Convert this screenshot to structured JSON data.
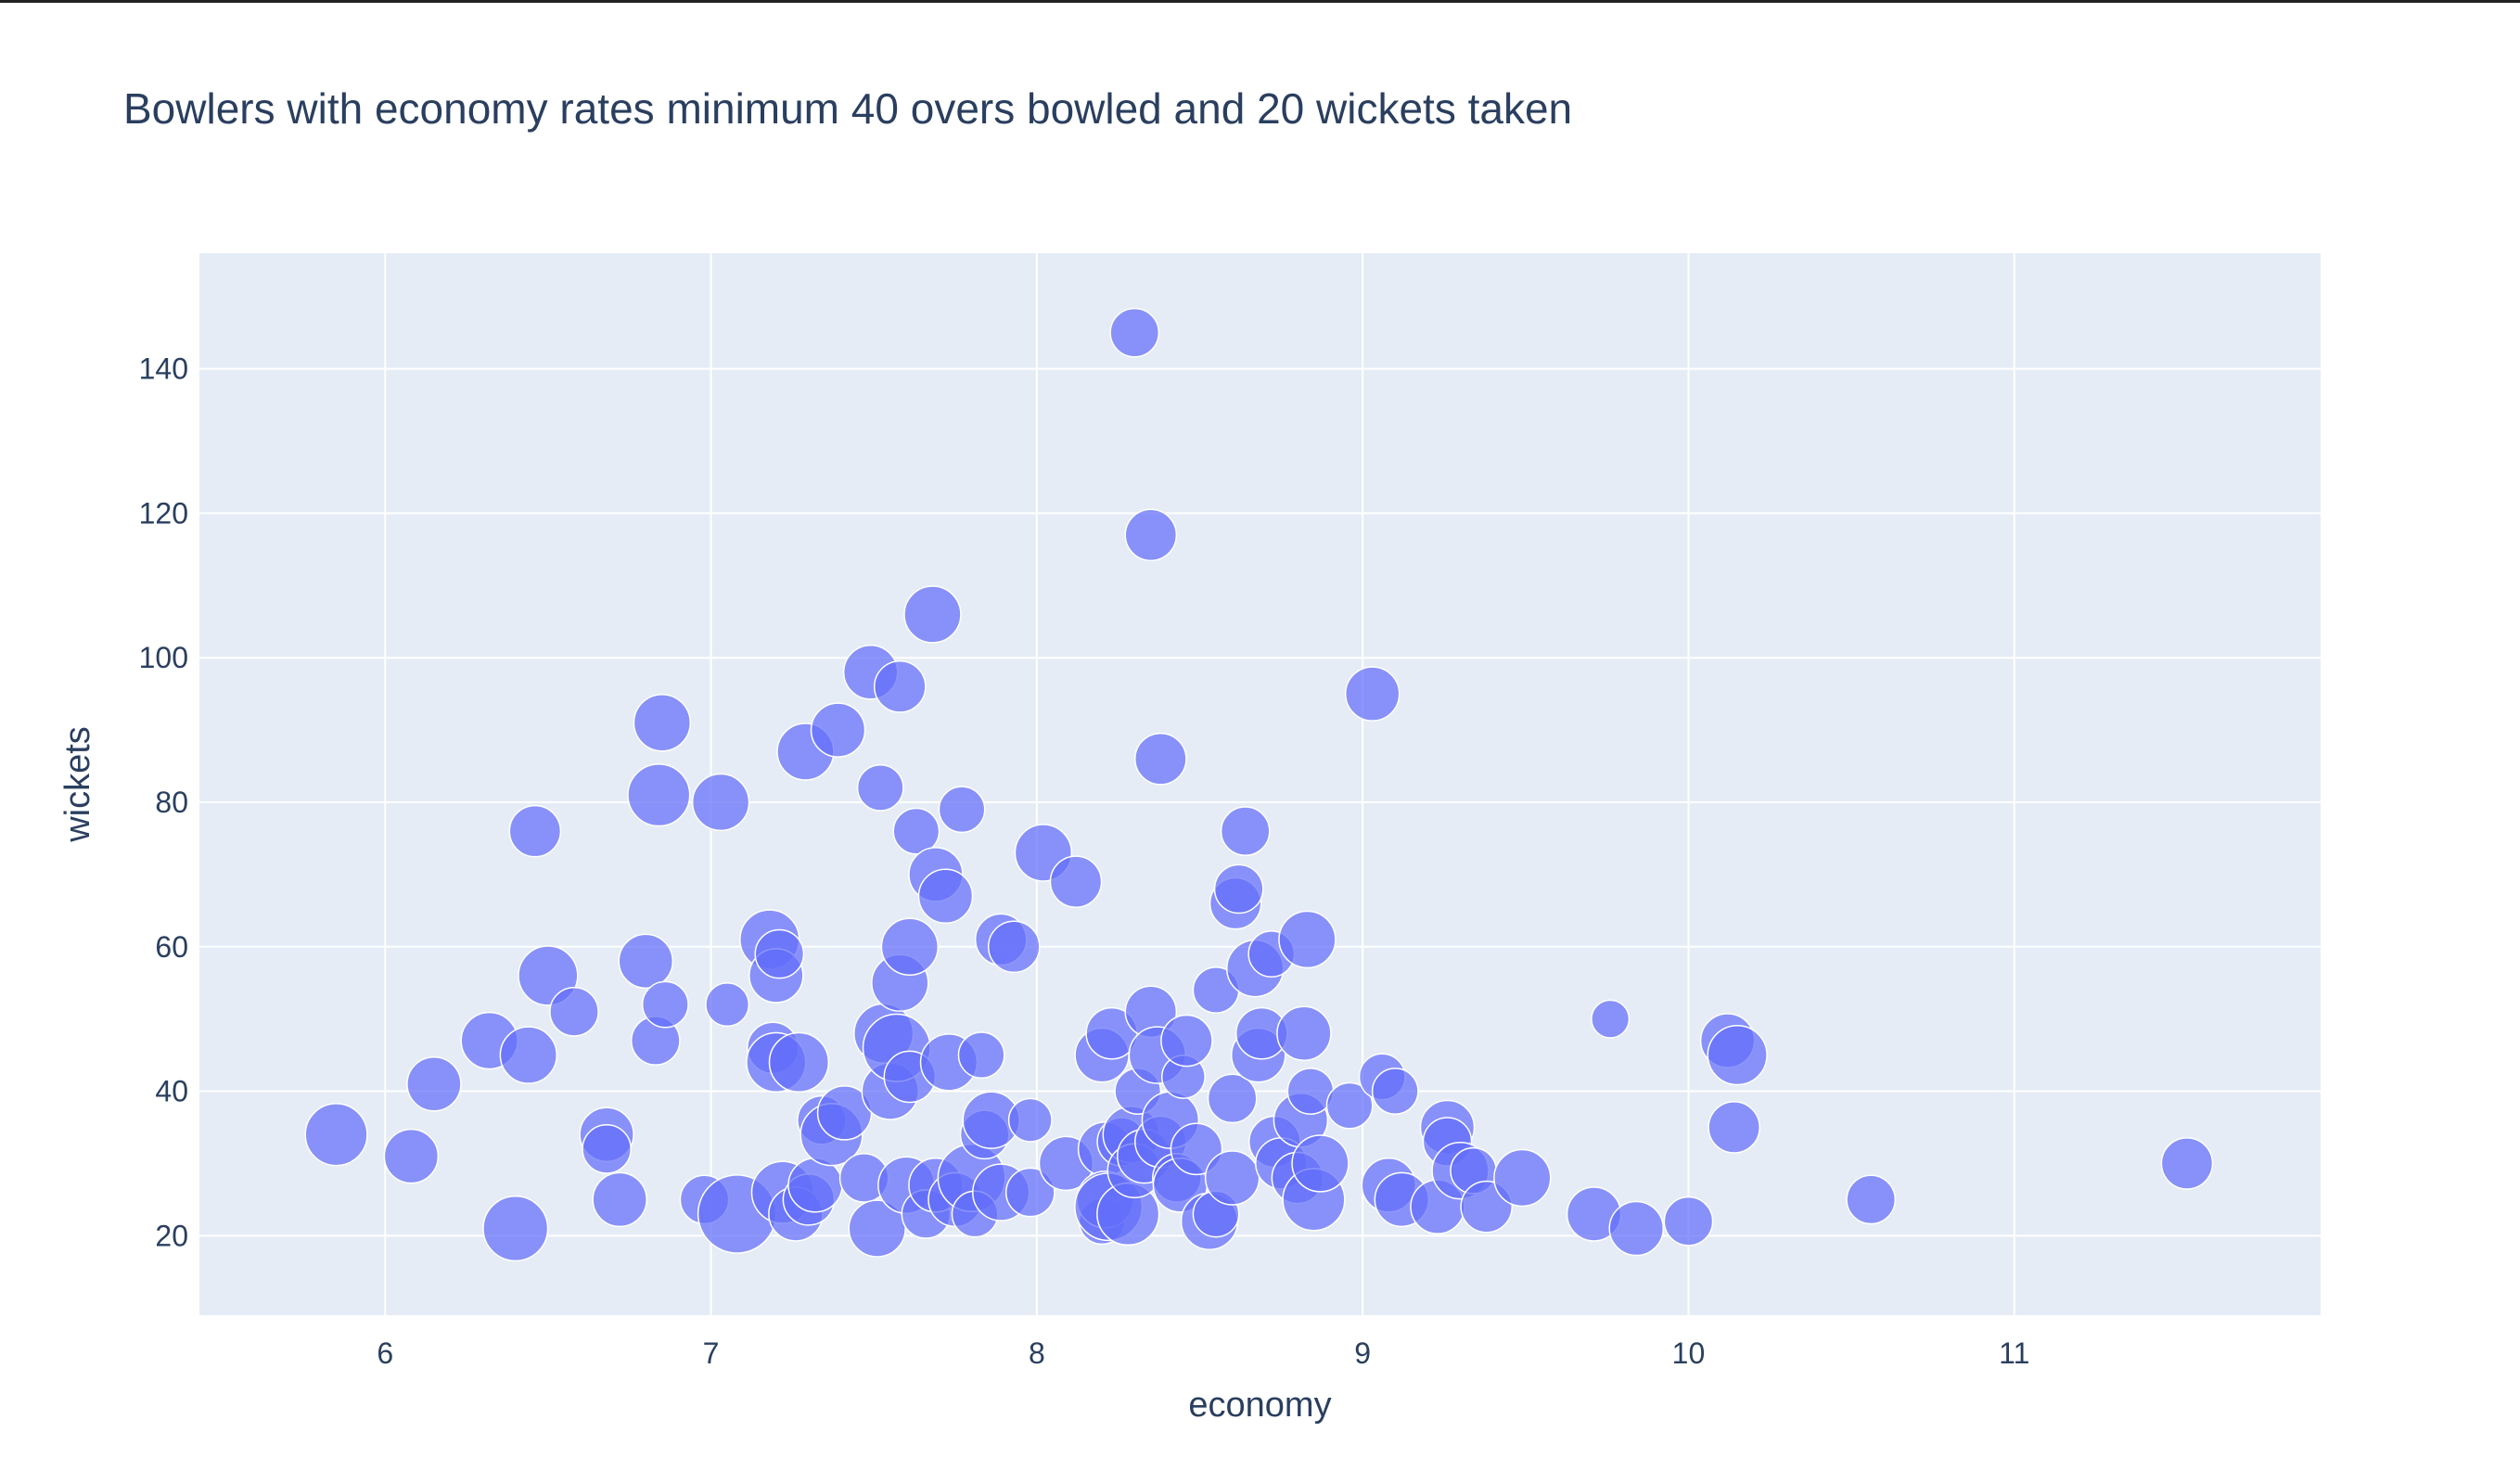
{
  "chart_data": {
    "type": "scatter",
    "title": "Bowlers with economy rates minimum 40 overs bowled and 20 wickets taken",
    "xlabel": "economy",
    "ylabel": "wickets",
    "xlim": [
      5.43,
      11.94
    ],
    "ylim": [
      9,
      156
    ],
    "x_ticks": [
      6,
      7,
      8,
      9,
      10,
      11
    ],
    "y_ticks": [
      20,
      40,
      60,
      80,
      100,
      120,
      140
    ],
    "grid": true,
    "marker_color": "#636efa",
    "plot_bg": "#e5ecf6",
    "series": [
      {
        "points": [
          {
            "x": 5.85,
            "y": 34,
            "s": 1.15
          },
          {
            "x": 6.08,
            "y": 31,
            "s": 1.0
          },
          {
            "x": 6.15,
            "y": 41,
            "s": 1.0
          },
          {
            "x": 6.32,
            "y": 47,
            "s": 1.05
          },
          {
            "x": 6.4,
            "y": 21,
            "s": 1.2
          },
          {
            "x": 6.44,
            "y": 45,
            "s": 1.05
          },
          {
            "x": 6.46,
            "y": 76,
            "s": 0.95
          },
          {
            "x": 6.5,
            "y": 56,
            "s": 1.1
          },
          {
            "x": 6.58,
            "y": 51,
            "s": 0.9
          },
          {
            "x": 6.68,
            "y": 34,
            "s": 1.0
          },
          {
            "x": 6.68,
            "y": 32,
            "s": 0.9
          },
          {
            "x": 6.72,
            "y": 25,
            "s": 1.0
          },
          {
            "x": 6.8,
            "y": 58,
            "s": 1.0
          },
          {
            "x": 6.83,
            "y": 47,
            "s": 0.9
          },
          {
            "x": 6.84,
            "y": 81,
            "s": 1.15
          },
          {
            "x": 6.85,
            "y": 91,
            "s": 1.05
          },
          {
            "x": 6.86,
            "y": 52,
            "s": 0.85
          },
          {
            "x": 6.98,
            "y": 25,
            "s": 0.9
          },
          {
            "x": 7.03,
            "y": 80,
            "s": 1.05
          },
          {
            "x": 7.05,
            "y": 52,
            "s": 0.8
          },
          {
            "x": 7.08,
            "y": 23,
            "s": 1.45
          },
          {
            "x": 7.18,
            "y": 61,
            "s": 1.1
          },
          {
            "x": 7.19,
            "y": 46,
            "s": 0.95
          },
          {
            "x": 7.2,
            "y": 56,
            "s": 1.0
          },
          {
            "x": 7.21,
            "y": 59,
            "s": 0.9
          },
          {
            "x": 7.2,
            "y": 44,
            "s": 1.1
          },
          {
            "x": 7.22,
            "y": 26,
            "s": 1.15
          },
          {
            "x": 7.26,
            "y": 23,
            "s": 1.0
          },
          {
            "x": 7.27,
            "y": 44,
            "s": 1.1
          },
          {
            "x": 7.29,
            "y": 87,
            "s": 1.05
          },
          {
            "x": 7.3,
            "y": 25,
            "s": 0.95
          },
          {
            "x": 7.32,
            "y": 27,
            "s": 1.0
          },
          {
            "x": 7.34,
            "y": 36,
            "s": 0.9
          },
          {
            "x": 7.37,
            "y": 34,
            "s": 1.15
          },
          {
            "x": 7.39,
            "y": 90,
            "s": 1.0
          },
          {
            "x": 7.41,
            "y": 37,
            "s": 1.0
          },
          {
            "x": 7.47,
            "y": 28,
            "s": 0.9
          },
          {
            "x": 7.49,
            "y": 98,
            "s": 1.0
          },
          {
            "x": 7.51,
            "y": 21,
            "s": 1.05
          },
          {
            "x": 7.52,
            "y": 82,
            "s": 0.85
          },
          {
            "x": 7.53,
            "y": 48,
            "s": 1.1
          },
          {
            "x": 7.55,
            "y": 40,
            "s": 1.05
          },
          {
            "x": 7.57,
            "y": 46,
            "s": 1.25
          },
          {
            "x": 7.58,
            "y": 55,
            "s": 1.05
          },
          {
            "x": 7.58,
            "y": 96,
            "s": 0.95
          },
          {
            "x": 7.6,
            "y": 27,
            "s": 1.05
          },
          {
            "x": 7.61,
            "y": 42,
            "s": 0.95
          },
          {
            "x": 7.61,
            "y": 60,
            "s": 1.05
          },
          {
            "x": 7.63,
            "y": 76,
            "s": 0.85
          },
          {
            "x": 7.66,
            "y": 23,
            "s": 0.9
          },
          {
            "x": 7.68,
            "y": 106,
            "s": 1.05
          },
          {
            "x": 7.69,
            "y": 70,
            "s": 1.0
          },
          {
            "x": 7.69,
            "y": 27,
            "s": 1.0
          },
          {
            "x": 7.72,
            "y": 67,
            "s": 1.0
          },
          {
            "x": 7.73,
            "y": 44,
            "s": 1.05
          },
          {
            "x": 7.75,
            "y": 25,
            "s": 1.0
          },
          {
            "x": 7.77,
            "y": 79,
            "s": 0.85
          },
          {
            "x": 7.8,
            "y": 28,
            "s": 1.25
          },
          {
            "x": 7.81,
            "y": 23,
            "s": 0.85
          },
          {
            "x": 7.83,
            "y": 45,
            "s": 0.85
          },
          {
            "x": 7.84,
            "y": 34,
            "s": 0.9
          },
          {
            "x": 7.86,
            "y": 36,
            "s": 1.05
          },
          {
            "x": 7.89,
            "y": 61,
            "s": 0.95
          },
          {
            "x": 7.89,
            "y": 26,
            "s": 1.05
          },
          {
            "x": 7.93,
            "y": 60,
            "s": 0.95
          },
          {
            "x": 7.98,
            "y": 36,
            "s": 0.8
          },
          {
            "x": 7.98,
            "y": 26,
            "s": 0.9
          },
          {
            "x": 8.02,
            "y": 73,
            "s": 1.05
          },
          {
            "x": 8.09,
            "y": 30,
            "s": 1.0
          },
          {
            "x": 8.12,
            "y": 69,
            "s": 0.95
          },
          {
            "x": 8.2,
            "y": 45,
            "s": 1.0
          },
          {
            "x": 8.2,
            "y": 22,
            "s": 0.85
          },
          {
            "x": 8.21,
            "y": 32,
            "s": 1.0
          },
          {
            "x": 8.21,
            "y": 25,
            "s": 1.05
          },
          {
            "x": 8.22,
            "y": 24,
            "s": 1.25
          },
          {
            "x": 8.23,
            "y": 48,
            "s": 0.95
          },
          {
            "x": 8.26,
            "y": 33,
            "s": 0.9
          },
          {
            "x": 8.28,
            "y": 23,
            "s": 1.15
          },
          {
            "x": 8.29,
            "y": 34,
            "s": 1.05
          },
          {
            "x": 8.3,
            "y": 145,
            "s": 0.9
          },
          {
            "x": 8.3,
            "y": 29,
            "s": 1.0
          },
          {
            "x": 8.31,
            "y": 40,
            "s": 0.85
          },
          {
            "x": 8.33,
            "y": 31,
            "s": 1.0
          },
          {
            "x": 8.35,
            "y": 51,
            "s": 0.95
          },
          {
            "x": 8.35,
            "y": 117,
            "s": 0.95
          },
          {
            "x": 8.37,
            "y": 45,
            "s": 1.05
          },
          {
            "x": 8.38,
            "y": 86,
            "s": 0.95
          },
          {
            "x": 8.38,
            "y": 33,
            "s": 0.95
          },
          {
            "x": 8.41,
            "y": 36,
            "s": 1.05
          },
          {
            "x": 8.43,
            "y": 28,
            "s": 0.9
          },
          {
            "x": 8.44,
            "y": 27,
            "s": 1.0
          },
          {
            "x": 8.45,
            "y": 42,
            "s": 0.8
          },
          {
            "x": 8.46,
            "y": 47,
            "s": 0.95
          },
          {
            "x": 8.49,
            "y": 32,
            "s": 0.95
          },
          {
            "x": 8.53,
            "y": 22,
            "s": 1.05
          },
          {
            "x": 8.55,
            "y": 54,
            "s": 0.85
          },
          {
            "x": 8.55,
            "y": 23,
            "s": 0.85
          },
          {
            "x": 8.6,
            "y": 39,
            "s": 0.9
          },
          {
            "x": 8.6,
            "y": 28,
            "s": 1.0
          },
          {
            "x": 8.61,
            "y": 66,
            "s": 0.95
          },
          {
            "x": 8.62,
            "y": 68,
            "s": 0.9
          },
          {
            "x": 8.64,
            "y": 76,
            "s": 0.9
          },
          {
            "x": 8.67,
            "y": 57,
            "s": 1.05
          },
          {
            "x": 8.68,
            "y": 45,
            "s": 1.0
          },
          {
            "x": 8.69,
            "y": 48,
            "s": 0.95
          },
          {
            "x": 8.72,
            "y": 59,
            "s": 0.85
          },
          {
            "x": 8.73,
            "y": 33,
            "s": 0.95
          },
          {
            "x": 8.75,
            "y": 30,
            "s": 0.95
          },
          {
            "x": 8.8,
            "y": 28,
            "s": 0.95
          },
          {
            "x": 8.81,
            "y": 36,
            "s": 1.0
          },
          {
            "x": 8.82,
            "y": 48,
            "s": 1.0
          },
          {
            "x": 8.83,
            "y": 61,
            "s": 1.05
          },
          {
            "x": 8.84,
            "y": 40,
            "s": 0.85
          },
          {
            "x": 8.85,
            "y": 25,
            "s": 1.15
          },
          {
            "x": 8.87,
            "y": 30,
            "s": 1.05
          },
          {
            "x": 8.96,
            "y": 38,
            "s": 0.85
          },
          {
            "x": 9.03,
            "y": 95,
            "s": 1.0
          },
          {
            "x": 9.06,
            "y": 42,
            "s": 0.85
          },
          {
            "x": 9.08,
            "y": 27,
            "s": 1.0
          },
          {
            "x": 9.1,
            "y": 40,
            "s": 0.85
          },
          {
            "x": 9.12,
            "y": 25,
            "s": 1.0
          },
          {
            "x": 9.23,
            "y": 24,
            "s": 1.0
          },
          {
            "x": 9.26,
            "y": 35,
            "s": 1.0
          },
          {
            "x": 9.26,
            "y": 33,
            "s": 0.9
          },
          {
            "x": 9.3,
            "y": 29,
            "s": 1.05
          },
          {
            "x": 9.34,
            "y": 29,
            "s": 0.85
          },
          {
            "x": 9.38,
            "y": 24,
            "s": 0.95
          },
          {
            "x": 9.49,
            "y": 28,
            "s": 1.05
          },
          {
            "x": 9.71,
            "y": 23,
            "s": 1.0
          },
          {
            "x": 9.76,
            "y": 50,
            "s": 0.7
          },
          {
            "x": 9.84,
            "y": 21,
            "s": 1.0
          },
          {
            "x": 10.0,
            "y": 22,
            "s": 0.9
          },
          {
            "x": 10.12,
            "y": 47,
            "s": 1.0
          },
          {
            "x": 10.14,
            "y": 35,
            "s": 0.95
          },
          {
            "x": 10.15,
            "y": 45,
            "s": 1.1
          },
          {
            "x": 10.56,
            "y": 25,
            "s": 0.9
          },
          {
            "x": 11.53,
            "y": 30,
            "s": 0.95
          }
        ]
      }
    ]
  }
}
